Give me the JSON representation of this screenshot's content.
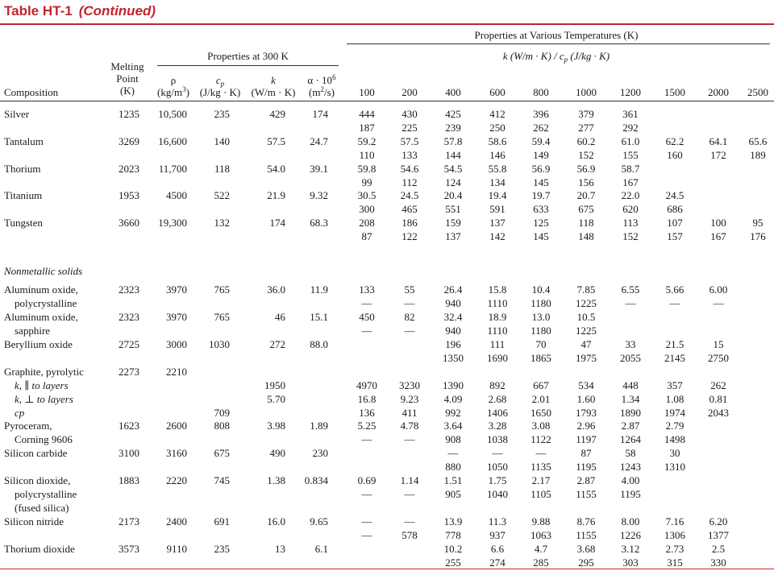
{
  "title": {
    "main": "Table HT-1",
    "cont": "(Continued)"
  },
  "header": {
    "props300": "Properties at 300 K",
    "propsVarious": "Properties at Various Temperatures (K)",
    "kcpLabel": "k (W/m · K) / cp (J/kg · K)",
    "melting": [
      "Melting",
      "Point",
      "(K)"
    ],
    "composition": "Composition",
    "rho": [
      "ρ",
      "(kg/m³)"
    ],
    "cp": [
      "cp",
      "(J/kg · K)"
    ],
    "k": [
      "k",
      "(W/m · K)"
    ],
    "alpha": [
      "α · 10⁶",
      "(m²/s)"
    ],
    "temps": [
      "100",
      "200",
      "400",
      "600",
      "800",
      "1000",
      "1200",
      "1500",
      "2000",
      "2500"
    ]
  },
  "section": "Nonmetallic solids",
  "rows": [
    {
      "y": 134,
      "name": [
        "Silver"
      ],
      "main": [
        "1235",
        "10,500",
        "235",
        "429",
        "174"
      ],
      "t": [
        [
          "444",
          "187"
        ],
        [
          "430",
          "225"
        ],
        [
          "425",
          "239"
        ],
        [
          "412",
          "250"
        ],
        [
          "396",
          "262"
        ],
        [
          "379",
          "277"
        ],
        [
          "361",
          "292"
        ],
        [
          "",
          ""
        ],
        [
          "",
          ""
        ],
        [
          "",
          ""
        ]
      ]
    },
    {
      "y": 168,
      "name": [
        "Tantalum"
      ],
      "main": [
        "3269",
        "16,600",
        "140",
        "57.5",
        "24.7"
      ],
      "t": [
        [
          "59.2",
          "110"
        ],
        [
          "57.5",
          "133"
        ],
        [
          "57.8",
          "144"
        ],
        [
          "58.6",
          "146"
        ],
        [
          "59.4",
          "149"
        ],
        [
          "60.2",
          "152"
        ],
        [
          "61.0",
          "155"
        ],
        [
          "62.2",
          "160"
        ],
        [
          "64.1",
          "172"
        ],
        [
          "65.6",
          "189"
        ]
      ]
    },
    {
      "y": 202,
      "name": [
        "Thorium"
      ],
      "main": [
        "2023",
        "11,700",
        "118",
        "54.0",
        "39.1"
      ],
      "t": [
        [
          "59.8",
          "99"
        ],
        [
          "54.6",
          "112"
        ],
        [
          "54.5",
          "124"
        ],
        [
          "55.8",
          "134"
        ],
        [
          "56.9",
          "145"
        ],
        [
          "56.9",
          "156"
        ],
        [
          "58.7",
          "167"
        ],
        [
          "",
          ""
        ],
        [
          "",
          ""
        ],
        [
          "",
          ""
        ]
      ]
    },
    {
      "y": 235,
      "name": [
        "Titanium"
      ],
      "main": [
        "1953",
        "4500",
        "522",
        "21.9",
        "9.32"
      ],
      "t": [
        [
          "30.5",
          "300"
        ],
        [
          "24.5",
          "465"
        ],
        [
          "20.4",
          "551"
        ],
        [
          "19.4",
          "591"
        ],
        [
          "19.7",
          "633"
        ],
        [
          "20.7",
          "675"
        ],
        [
          "22.0",
          "620"
        ],
        [
          "24.5",
          "686"
        ],
        [
          "",
          ""
        ],
        [
          "",
          ""
        ]
      ]
    },
    {
      "y": 269,
      "name": [
        "Tungsten"
      ],
      "main": [
        "3660",
        "19,300",
        "132",
        "174",
        "68.3"
      ],
      "t": [
        [
          "208",
          "87"
        ],
        [
          "186",
          "122"
        ],
        [
          "159",
          "137"
        ],
        [
          "137",
          "142"
        ],
        [
          "125",
          "145"
        ],
        [
          "118",
          "148"
        ],
        [
          "113",
          "152"
        ],
        [
          "107",
          "157"
        ],
        [
          "100",
          "167"
        ],
        [
          "95",
          "176"
        ]
      ]
    },
    {
      "y": 352,
      "name": [
        "Aluminum oxide,",
        "polycrystalline"
      ],
      "main": [
        "2323",
        "3970",
        "765",
        "36.0",
        "11.9"
      ],
      "t": [
        [
          "133",
          "—"
        ],
        [
          "55",
          "—"
        ],
        [
          "26.4",
          "940"
        ],
        [
          "15.8",
          "1110"
        ],
        [
          "10.4",
          "1180"
        ],
        [
          "7.85",
          "1225"
        ],
        [
          "6.55",
          "—"
        ],
        [
          "5.66",
          "—"
        ],
        [
          "6.00",
          "—"
        ],
        [
          "",
          ""
        ]
      ]
    },
    {
      "y": 386,
      "name": [
        "Aluminum oxide,",
        "sapphire"
      ],
      "main": [
        "2323",
        "3970",
        "765",
        "46",
        "15.1"
      ],
      "t": [
        [
          "450",
          "—"
        ],
        [
          "82",
          "—"
        ],
        [
          "32.4",
          "940"
        ],
        [
          "18.9",
          "1110"
        ],
        [
          "13.0",
          "1180"
        ],
        [
          "10.5",
          "1225"
        ],
        [
          "",
          ""
        ],
        [
          "",
          ""
        ],
        [
          "",
          ""
        ],
        [
          "",
          ""
        ]
      ]
    },
    {
      "y": 420,
      "name": [
        "Beryllium oxide"
      ],
      "main": [
        "2725",
        "3000",
        "1030",
        "272",
        "88.0"
      ],
      "t": [
        [
          "",
          ""
        ],
        [
          "",
          ""
        ],
        [
          "196",
          "1350"
        ],
        [
          "111",
          "1690"
        ],
        [
          "70",
          "1865"
        ],
        [
          "47",
          "1975"
        ],
        [
          "33",
          "2055"
        ],
        [
          "21.5",
          "2145"
        ],
        [
          "15",
          "2750"
        ],
        [
          "",
          ""
        ]
      ]
    },
    {
      "y": 622,
      "name": [
        "Silicon dioxide,",
        "polycrystalline",
        "(fused silica)"
      ],
      "main": [
        "1883",
        "2220",
        "745",
        "1.38",
        "0.834"
      ],
      "t": [
        [
          "0.69",
          "—"
        ],
        [
          "1.14",
          "—"
        ],
        [
          "1.51",
          "905"
        ],
        [
          "1.75",
          "1040"
        ],
        [
          "2.17",
          "1105"
        ],
        [
          "2.87",
          "1155"
        ],
        [
          "4.00",
          "1195"
        ],
        [
          "",
          ""
        ],
        [
          "",
          ""
        ],
        [
          "",
          ""
        ]
      ]
    },
    {
      "y": 640,
      "name": [
        "Silicon nitride"
      ],
      "main": [
        "2173",
        "2400",
        "691",
        "16.0",
        "9.65"
      ],
      "t": [
        [
          "—",
          "—"
        ],
        [
          "—",
          "578"
        ],
        [
          "13.9",
          "778"
        ],
        [
          "11.3",
          "937"
        ],
        [
          "9.88",
          "1063"
        ],
        [
          "8.76",
          "1155"
        ],
        [
          "8.00",
          "1226"
        ],
        [
          "7.16",
          "1306"
        ],
        [
          "6.20",
          "1377"
        ],
        [
          "",
          ""
        ]
      ]
    },
    {
      "y": 674,
      "name": [
        "Thorium dioxide"
      ],
      "main": [
        "3573",
        "9110",
        "235",
        "13",
        "6.1"
      ],
      "t": [
        [
          "",
          ""
        ],
        [
          "",
          ""
        ],
        [
          "10.2",
          "255"
        ],
        [
          "6.6",
          "274"
        ],
        [
          "4.7",
          "285"
        ],
        [
          "3.68",
          "295"
        ],
        [
          "3.12",
          "303"
        ],
        [
          "2.73",
          "315"
        ],
        [
          "2.5",
          "330"
        ],
        [
          "",
          ""
        ]
      ]
    }
  ],
  "graphite": {
    "name": [
      "Graphite, pyrolytic",
      "k, ∥ to layers",
      "k, ⊥ to layers",
      "cp"
    ],
    "melt": "2273",
    "rho": "2210",
    "k_par": [
      "1950",
      "4970",
      "3230",
      "1390",
      "892",
      "667",
      "534",
      "448",
      "357",
      "262"
    ],
    "k_perp": [
      "5.70",
      "16.8",
      "9.23",
      "4.09",
      "2.68",
      "2.01",
      "1.60",
      "1.34",
      "1.08",
      "0.81"
    ],
    "cp": [
      "709",
      "136",
      "411",
      "992",
      "1406",
      "1650",
      "1793",
      "1890",
      "1974",
      "2043"
    ]
  },
  "pyroceram": {
    "name": [
      "Pyroceram,",
      "Corning 9606"
    ],
    "main": [
      "1623",
      "2600",
      "808",
      "3.98",
      "1.89"
    ],
    "k": [
      "5.25",
      "4.78",
      "3.64",
      "3.28",
      "3.08",
      "2.96",
      "2.87",
      "2.79"
    ],
    "cp": [
      "—",
      "—",
      "908",
      "1038",
      "1122",
      "1197",
      "1264",
      "1498"
    ]
  },
  "sic": {
    "name": [
      "Silicon carbide"
    ],
    "main": [
      "3100",
      "3160",
      "675",
      "490",
      "230"
    ],
    "k": [
      "—",
      "—",
      "—",
      "87",
      "58",
      "30"
    ],
    "cp": [
      "880",
      "1050",
      "1135",
      "1195",
      "1243",
      "1310"
    ]
  }
}
